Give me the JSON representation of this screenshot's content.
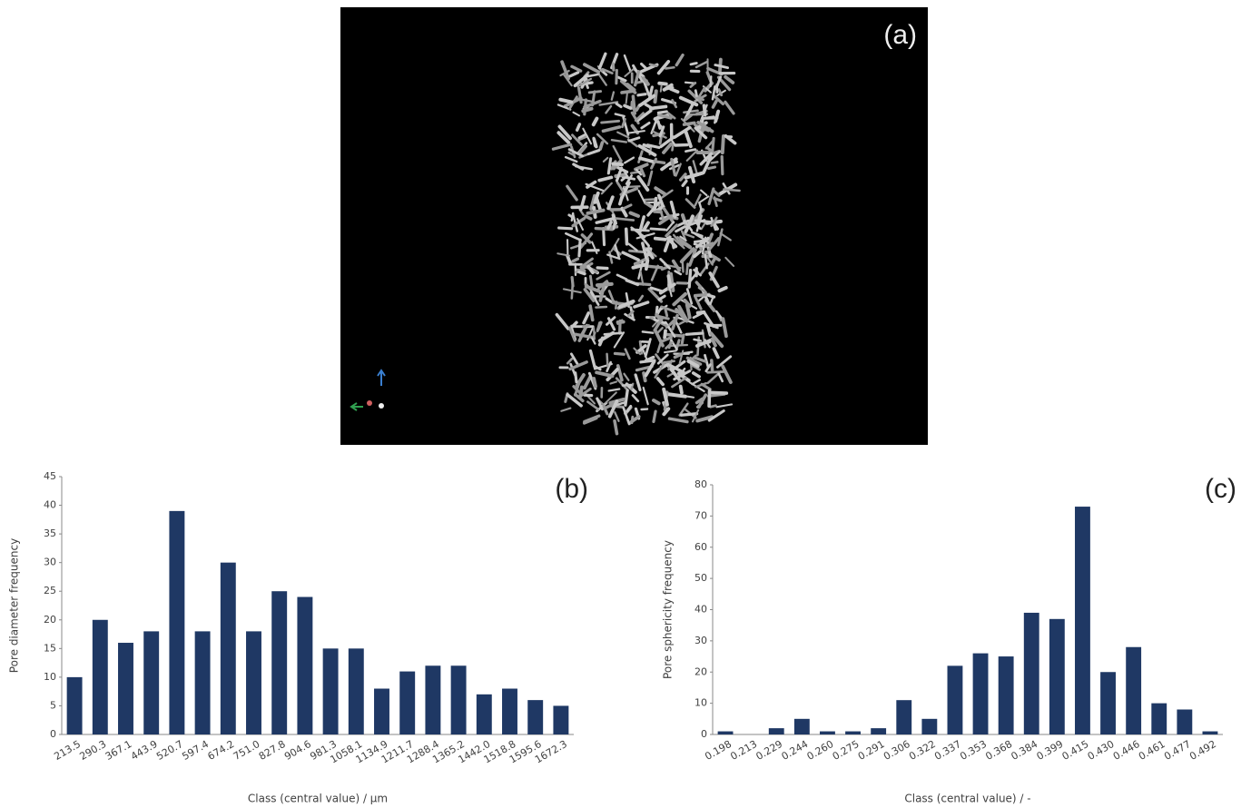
{
  "image_label": "(a)",
  "chart_data": [
    {
      "type": "bar",
      "label": "(b)",
      "ylabel": "Pore diameter frequency",
      "xlabel": "Class (central value) / µm",
      "categories": [
        "213.5",
        "290.3",
        "367.1",
        "443.9",
        "520.7",
        "597.4",
        "674.2",
        "751.0",
        "827.8",
        "904.6",
        "981.3",
        "1058.1",
        "1134.9",
        "1211.7",
        "1288.4",
        "1365.2",
        "1442.0",
        "1518.8",
        "1595.6",
        "1672.3"
      ],
      "values": [
        10,
        20,
        16,
        18,
        39,
        18,
        30,
        18,
        25,
        24,
        15,
        15,
        8,
        11,
        12,
        12,
        7,
        8,
        6,
        5
      ],
      "color": "#1f3864",
      "ylim": [
        0,
        45
      ],
      "yticks": [
        0,
        5,
        10,
        15,
        20,
        25,
        30,
        35,
        40,
        45
      ]
    },
    {
      "type": "bar",
      "label": "(c)",
      "ylabel": "Pore sphericity frequency",
      "xlabel": "Class (central value) / -",
      "categories": [
        "0.198",
        "0.213",
        "0.229",
        "0.244",
        "0.260",
        "0.275",
        "0.291",
        "0.306",
        "0.322",
        "0.337",
        "0.353",
        "0.368",
        "0.384",
        "0.399",
        "0.415",
        "0.430",
        "0.446",
        "0.461",
        "0.477",
        "0.492"
      ],
      "values": [
        1,
        0,
        2,
        5,
        1,
        1,
        2,
        11,
        5,
        22,
        26,
        25,
        39,
        37,
        73,
        20,
        28,
        10,
        8,
        1
      ],
      "color": "#1f3864",
      "ylim": [
        0,
        80
      ],
      "yticks": [
        0,
        10,
        20,
        30,
        40,
        50,
        60,
        70,
        80
      ]
    }
  ]
}
